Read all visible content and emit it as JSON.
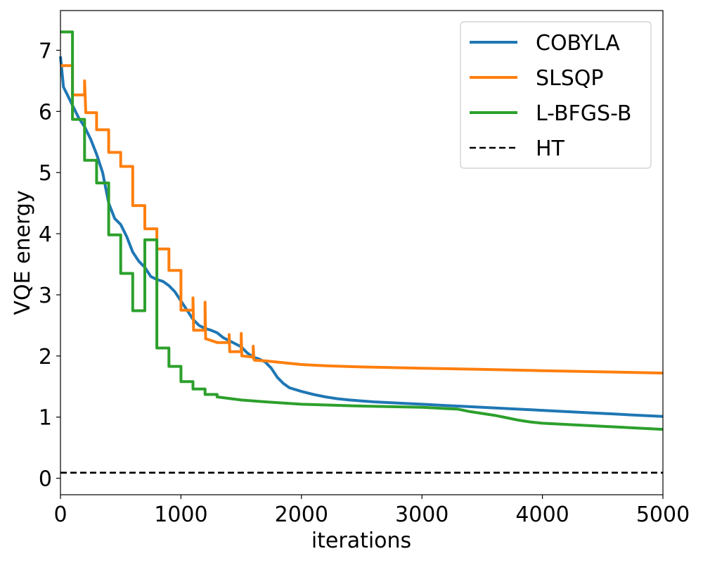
{
  "chart_data": {
    "type": "line",
    "xlabel": "iterations",
    "ylabel": "VQE energy",
    "xlim": [
      0,
      5000
    ],
    "ylim": [
      -0.27,
      7.65
    ],
    "xticks": [
      0,
      1000,
      2000,
      3000,
      4000,
      5000
    ],
    "yticks": [
      0,
      1,
      2,
      3,
      4,
      5,
      6,
      7
    ],
    "grid": false,
    "legend_position": "top-right",
    "series": [
      {
        "name": "COBYLA",
        "color": "#1f77b4",
        "style": "solid",
        "x": [
          0,
          25,
          50,
          75,
          100,
          150,
          200,
          250,
          300,
          350,
          400,
          450,
          500,
          550,
          600,
          650,
          700,
          750,
          800,
          850,
          900,
          950,
          1000,
          1050,
          1100,
          1150,
          1200,
          1250,
          1300,
          1350,
          1400,
          1450,
          1500,
          1550,
          1600,
          1650,
          1700,
          1750,
          1800,
          1850,
          1900,
          2000,
          2100,
          2200,
          2300,
          2400,
          2600,
          2800,
          3000,
          3200,
          3400,
          3600,
          3800,
          4000,
          4200,
          4400,
          4600,
          4800,
          5000
        ],
        "y": [
          6.9,
          6.4,
          6.3,
          6.2,
          6.1,
          5.9,
          5.75,
          5.55,
          5.3,
          5.0,
          4.5,
          4.25,
          4.15,
          3.95,
          3.7,
          3.55,
          3.45,
          3.3,
          3.25,
          3.22,
          3.15,
          3.05,
          2.9,
          2.75,
          2.6,
          2.5,
          2.45,
          2.42,
          2.38,
          2.3,
          2.25,
          2.2,
          2.15,
          2.05,
          1.98,
          1.95,
          1.9,
          1.8,
          1.65,
          1.55,
          1.48,
          1.42,
          1.37,
          1.33,
          1.3,
          1.28,
          1.25,
          1.23,
          1.21,
          1.19,
          1.17,
          1.15,
          1.13,
          1.11,
          1.09,
          1.07,
          1.05,
          1.03,
          1.01
        ]
      },
      {
        "name": "SLSQP",
        "color": "#ff7f0e",
        "style": "solid",
        "x": [
          0,
          100,
          100,
          200,
          200,
          205,
          210,
          220,
          220,
          300,
          300,
          400,
          400,
          500,
          500,
          600,
          600,
          700,
          700,
          800,
          800,
          900,
          900,
          1000,
          1000,
          1100,
          1100,
          1105,
          1110,
          1200,
          1200,
          1205,
          1210,
          1300,
          1300,
          1400,
          1400,
          1405,
          1410,
          1500,
          1500,
          1505,
          1510,
          1600,
          1600,
          1605,
          1610,
          1700,
          1800,
          1900,
          2000,
          2200,
          2500,
          3000,
          3500,
          4000,
          4500,
          5000
        ],
        "y": [
          6.75,
          6.75,
          6.27,
          6.27,
          6.5,
          6.27,
          5.98,
          5.98,
          5.98,
          5.98,
          5.7,
          5.7,
          5.33,
          5.33,
          5.1,
          5.1,
          4.46,
          4.46,
          4.08,
          4.08,
          3.75,
          3.75,
          3.4,
          3.4,
          2.75,
          2.75,
          2.95,
          2.42,
          2.42,
          2.42,
          2.88,
          2.28,
          2.28,
          2.22,
          2.22,
          2.22,
          2.35,
          2.07,
          2.07,
          2.07,
          2.37,
          2.0,
          2.0,
          1.98,
          2.16,
          1.95,
          1.93,
          1.92,
          1.9,
          1.88,
          1.86,
          1.84,
          1.82,
          1.8,
          1.78,
          1.76,
          1.74,
          1.72
        ]
      },
      {
        "name": "L-BFGS-B",
        "color": "#2ca02c",
        "style": "solid",
        "x": [
          0,
          100,
          100,
          200,
          200,
          300,
          300,
          400,
          400,
          500,
          500,
          600,
          600,
          700,
          700,
          800,
          800,
          900,
          900,
          1000,
          1000,
          1100,
          1100,
          1200,
          1200,
          1300,
          1300,
          1500,
          1700,
          2000,
          2500,
          3000,
          3300,
          3400,
          3500,
          3600,
          3700,
          3800,
          3900,
          4000,
          4500,
          5000
        ],
        "y": [
          7.3,
          7.3,
          5.87,
          5.87,
          5.2,
          5.2,
          4.83,
          4.83,
          3.98,
          3.98,
          3.35,
          3.35,
          2.74,
          2.74,
          3.9,
          3.9,
          2.13,
          2.13,
          1.83,
          1.83,
          1.58,
          1.58,
          1.46,
          1.46,
          1.37,
          1.37,
          1.33,
          1.28,
          1.25,
          1.21,
          1.18,
          1.16,
          1.13,
          1.09,
          1.06,
          1.03,
          0.99,
          0.95,
          0.92,
          0.9,
          0.85,
          0.8
        ]
      },
      {
        "name": "HT",
        "color": "#000000",
        "style": "dashed",
        "x": [
          0,
          5000
        ],
        "y": [
          0.09,
          0.09
        ]
      }
    ]
  }
}
